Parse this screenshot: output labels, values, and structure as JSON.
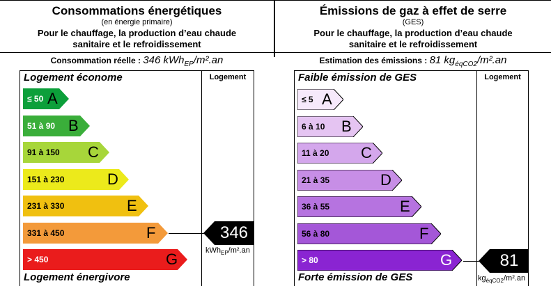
{
  "energy": {
    "title": "Consommations énergétiques",
    "subtitle": "(en énergie primaire)",
    "description_line1": "Pour le chauffage, la production d’eau chaude",
    "description_line2": "sanitaire et le refroidissement",
    "real_label": "Consommation réelle :",
    "real_value": "346 kWh",
    "real_sub": "EP",
    "real_unit": "/m².an",
    "top_caption": "Logement économe",
    "bottom_caption": "Logement énergivore",
    "column_header": "Logement",
    "classes": [
      {
        "range": "≤ 50",
        "letter": "A",
        "color": "#0c9f3a"
      },
      {
        "range": "51 à 90",
        "letter": "B",
        "color": "#3aae3a"
      },
      {
        "range": "91 à 150",
        "letter": "C",
        "color": "#a7d63a"
      },
      {
        "range": "151 à 230",
        "letter": "D",
        "color": "#ecea1b"
      },
      {
        "range": "231 à 330",
        "letter": "E",
        "color": "#f0c010"
      },
      {
        "range": "331 à 450",
        "letter": "F",
        "color": "#f39a3a"
      },
      {
        "range": "> 450",
        "letter": "G",
        "color": "#ea1c1c"
      }
    ],
    "indicator_value": "346",
    "indicator_class": "F",
    "indicator_unit": "kWh",
    "indicator_unit_sub": "EP",
    "indicator_unit_tail": "/m².an"
  },
  "ges": {
    "title": "Émissions de gaz à effet de serre",
    "subtitle": "(GES)",
    "description_line1": "Pour le chauffage, la production d’eau chaude",
    "description_line2": "sanitaire et le refroidissement",
    "real_label": "Estimation des émissions :",
    "real_value": "81 kg",
    "real_sub": "éqCO2",
    "real_unit": "/m².an",
    "top_caption": "Faible émission de GES",
    "bottom_caption": "Forte émission de GES",
    "column_header": "Logement",
    "classes": [
      {
        "range": "≤ 5",
        "letter": "A",
        "color": "#f6e9fb"
      },
      {
        "range": "6 à 10",
        "letter": "B",
        "color": "#e5c4f2"
      },
      {
        "range": "11 à 20",
        "letter": "C",
        "color": "#d4a7ec"
      },
      {
        "range": "21 à 35",
        "letter": "D",
        "color": "#c78ee6"
      },
      {
        "range": "36 à 55",
        "letter": "E",
        "color": "#b673e0"
      },
      {
        "range": "56 à 80",
        "letter": "F",
        "color": "#a457d8"
      },
      {
        "range": "> 80",
        "letter": "G",
        "color": "#8a24d2"
      }
    ],
    "indicator_value": "81",
    "indicator_class": "G",
    "indicator_unit": "kg",
    "indicator_unit_sub": "éqCO",
    "indicator_unit_sub2": "2",
    "indicator_unit_tail": "/m².an"
  }
}
